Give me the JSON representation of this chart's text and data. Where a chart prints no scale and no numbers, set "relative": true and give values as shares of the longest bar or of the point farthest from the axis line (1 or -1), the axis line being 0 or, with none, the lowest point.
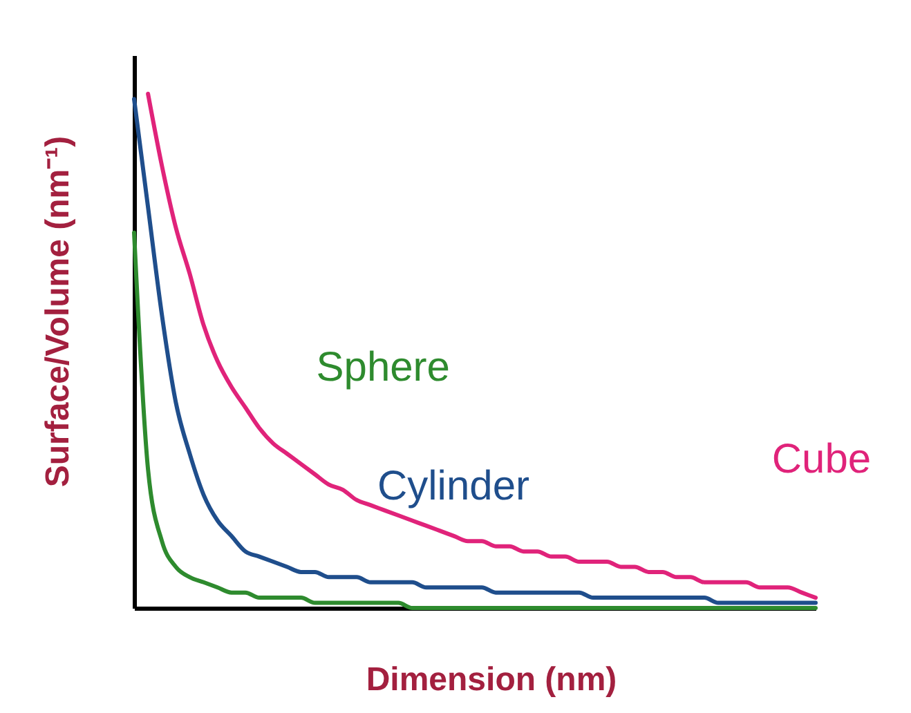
{
  "chart_data": {
    "type": "line",
    "relative": true,
    "xlabel": "Dimension (nm)",
    "ylabel": "Surface/Volume (nm⁻¹)",
    "tick_labels": false,
    "grid": false,
    "line_style": "solid",
    "categories": [
      null,
      null,
      null,
      null,
      null,
      null,
      null,
      null,
      null,
      null,
      null,
      null,
      null,
      null,
      null,
      null,
      null,
      null,
      null,
      null,
      null,
      null,
      null,
      null,
      null,
      null,
      null,
      null,
      null,
      null,
      null,
      null,
      null,
      null,
      null,
      null,
      null,
      null,
      null,
      null,
      null,
      null,
      null,
      null,
      null,
      null,
      null,
      null,
      null,
      null
    ],
    "series": [
      {
        "name": "Cube",
        "color": "#e0237a",
        "values": [
          null,
          1.0,
          0.86,
          0.74,
          0.65,
          0.55,
          0.48,
          0.43,
          0.39,
          0.35,
          0.32,
          0.3,
          0.28,
          0.26,
          0.24,
          0.23,
          0.21,
          0.2,
          0.19,
          0.18,
          0.17,
          0.16,
          0.15,
          0.14,
          0.13,
          0.13,
          0.12,
          0.12,
          0.11,
          0.11,
          0.1,
          0.1,
          0.09,
          0.09,
          0.09,
          0.08,
          0.08,
          0.07,
          0.07,
          0.06,
          0.06,
          0.05,
          0.05,
          0.05,
          0.05,
          0.04,
          0.04,
          0.04,
          0.03,
          0.02
        ]
      },
      {
        "name": "Cylinder",
        "color": "#1f4e8c",
        "values": [
          0.99,
          0.78,
          0.57,
          0.4,
          0.3,
          0.22,
          0.17,
          0.14,
          0.11,
          0.1,
          0.09,
          0.08,
          0.07,
          0.07,
          0.06,
          0.06,
          0.06,
          0.05,
          0.05,
          0.05,
          0.05,
          0.04,
          0.04,
          0.04,
          0.04,
          0.04,
          0.03,
          0.03,
          0.03,
          0.03,
          0.03,
          0.03,
          0.03,
          0.02,
          0.02,
          0.02,
          0.02,
          0.02,
          0.02,
          0.02,
          0.02,
          0.02,
          0.01,
          0.01,
          0.01,
          0.01,
          0.01,
          0.01,
          0.01,
          0.01
        ]
      },
      {
        "name": "Sphere",
        "color": "#2e8b2e",
        "values": [
          0.73,
          0.27,
          0.13,
          0.08,
          0.06,
          0.05,
          0.04,
          0.03,
          0.03,
          0.02,
          0.02,
          0.02,
          0.02,
          0.01,
          0.01,
          0.01,
          0.01,
          0.01,
          0.01,
          0.01,
          0.0,
          0.0,
          0.0,
          0.0,
          0.0,
          0.0,
          0.0,
          0.0,
          0.0,
          0.0,
          0.0,
          0.0,
          0.0,
          0.0,
          0.0,
          0.0,
          0.0,
          0.0,
          0.0,
          0.0,
          0.0,
          0.0,
          0.0,
          0.0,
          0.0,
          0.0,
          0.0,
          0.0,
          0.0,
          0.0
        ]
      }
    ]
  }
}
